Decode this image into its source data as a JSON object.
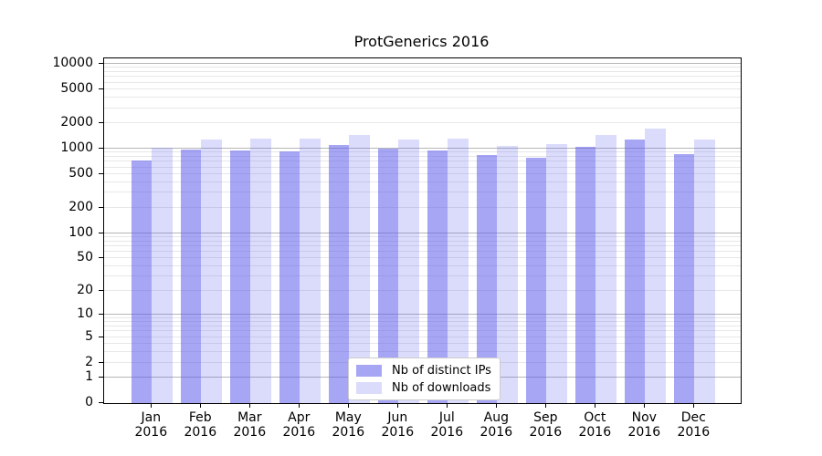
{
  "title": "ProtGenerics 2016",
  "chart_data": {
    "type": "bar",
    "title": "ProtGenerics 2016",
    "xlabel": "",
    "ylabel": "",
    "scale": "log1p",
    "grid": true,
    "legend_position": "lower center (inside plot)",
    "year": "2016",
    "months": [
      "Jan",
      "Feb",
      "Mar",
      "Apr",
      "May",
      "Jun",
      "Jul",
      "Aug",
      "Sep",
      "Oct",
      "Nov",
      "Dec"
    ],
    "categories": [
      "Jan 2016",
      "Feb 2016",
      "Mar 2016",
      "Apr 2016",
      "May 2016",
      "Jun 2016",
      "Jul 2016",
      "Aug 2016",
      "Sep 2016",
      "Oct 2016",
      "Nov 2016",
      "Dec 2016"
    ],
    "series": [
      {
        "name": "Nb of distinct IPs",
        "color": "rgba(92,92,237,0.55)",
        "values": [
          720,
          975,
          960,
          925,
          1095,
          990,
          945,
          830,
          780,
          1050,
          1290,
          855
        ]
      },
      {
        "name": "Nb of downloads",
        "color": "rgba(92,92,237,0.22)",
        "values": [
          1015,
          1280,
          1310,
          1300,
          1460,
          1290,
          1310,
          1075,
          1120,
          1460,
          1720,
          1270
        ]
      }
    ],
    "y_ticks": [
      0,
      1,
      2,
      5,
      10,
      20,
      50,
      100,
      200,
      500,
      1000,
      2000,
      5000,
      10000
    ],
    "y_major_gridlines": [
      1,
      10,
      100,
      1000,
      10000
    ],
    "ylim": [
      0,
      12000
    ]
  },
  "colors": {
    "bar_dark": "rgba(92,92,237,0.55)",
    "bar_light": "rgba(92,92,237,0.22)",
    "major_grid": "#b6b6b6",
    "minor_grid": "#e7e7e7",
    "axis": "#000000",
    "legend_border": "#cccccc",
    "background": "#ffffff"
  }
}
